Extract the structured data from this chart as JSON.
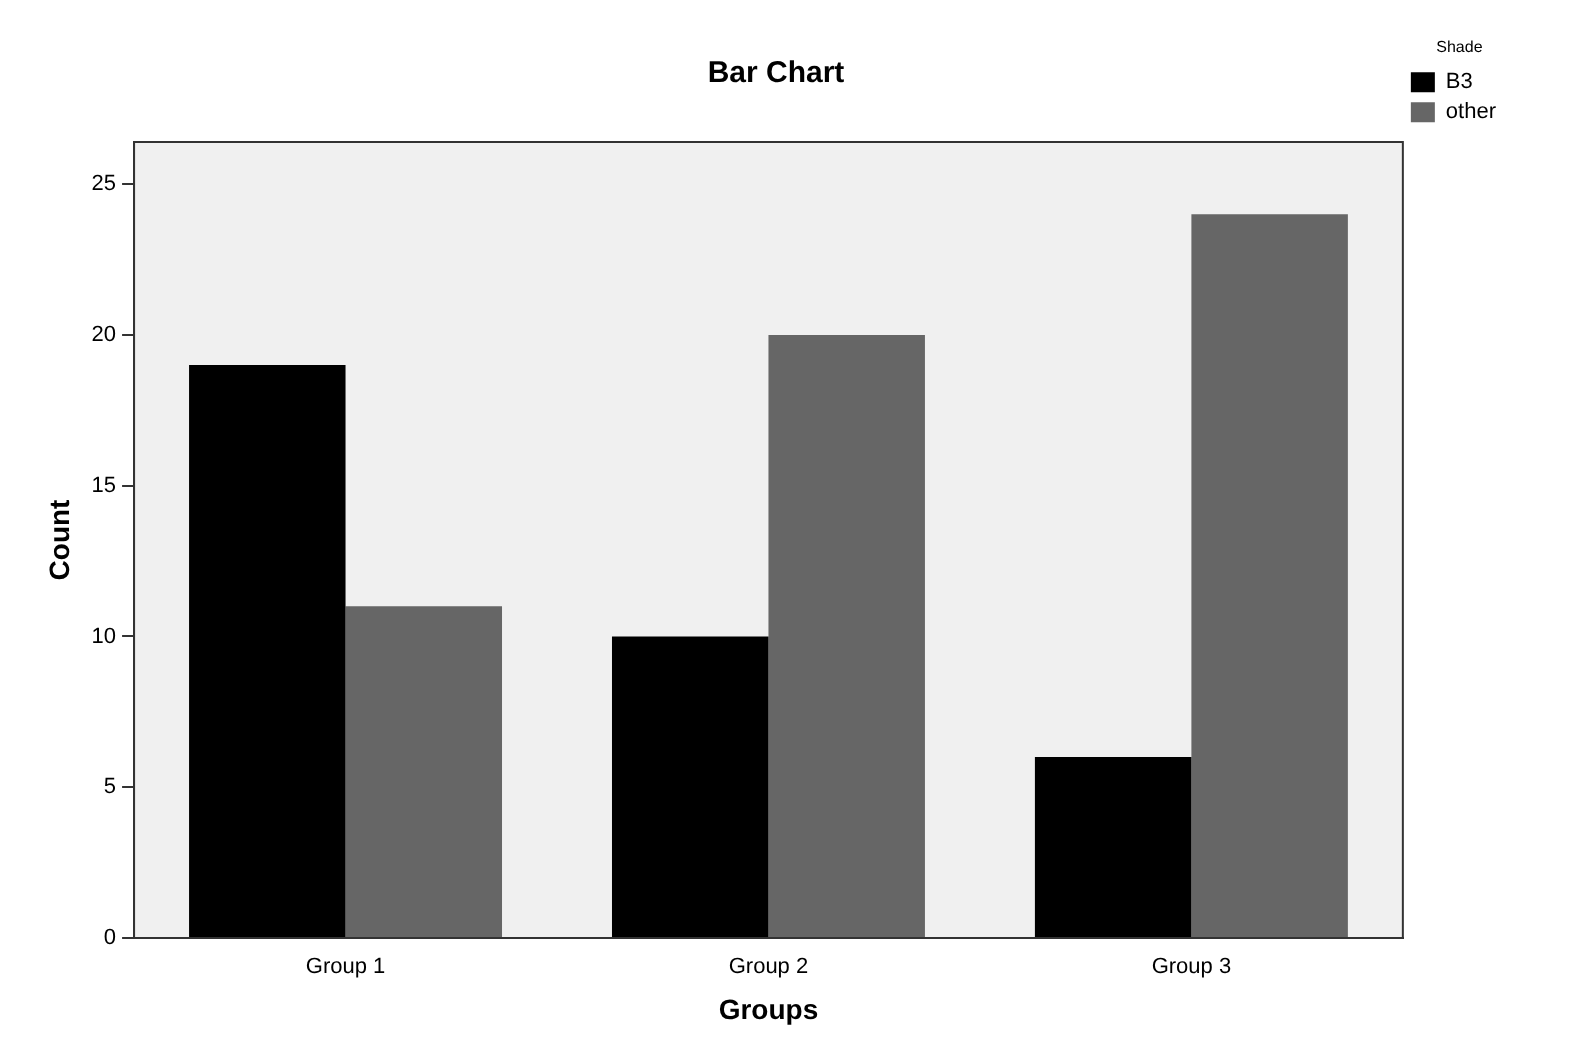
{
  "chart_data": {
    "type": "bar",
    "title": "Bar Chart",
    "xlabel": "Groups",
    "ylabel": "Count",
    "legend_title": "Shade",
    "categories": [
      "Group 1",
      "Group 2",
      "Group 3"
    ],
    "series": [
      {
        "name": "B3",
        "color": "#000000",
        "values": [
          19,
          10,
          6
        ]
      },
      {
        "name": "other",
        "color": "#666666",
        "values": [
          11,
          20,
          24
        ]
      }
    ],
    "ylim": [
      0,
      26.4
    ],
    "yticks": [
      0,
      5,
      10,
      15,
      20,
      25
    ],
    "grid": false,
    "legend": "top right"
  }
}
